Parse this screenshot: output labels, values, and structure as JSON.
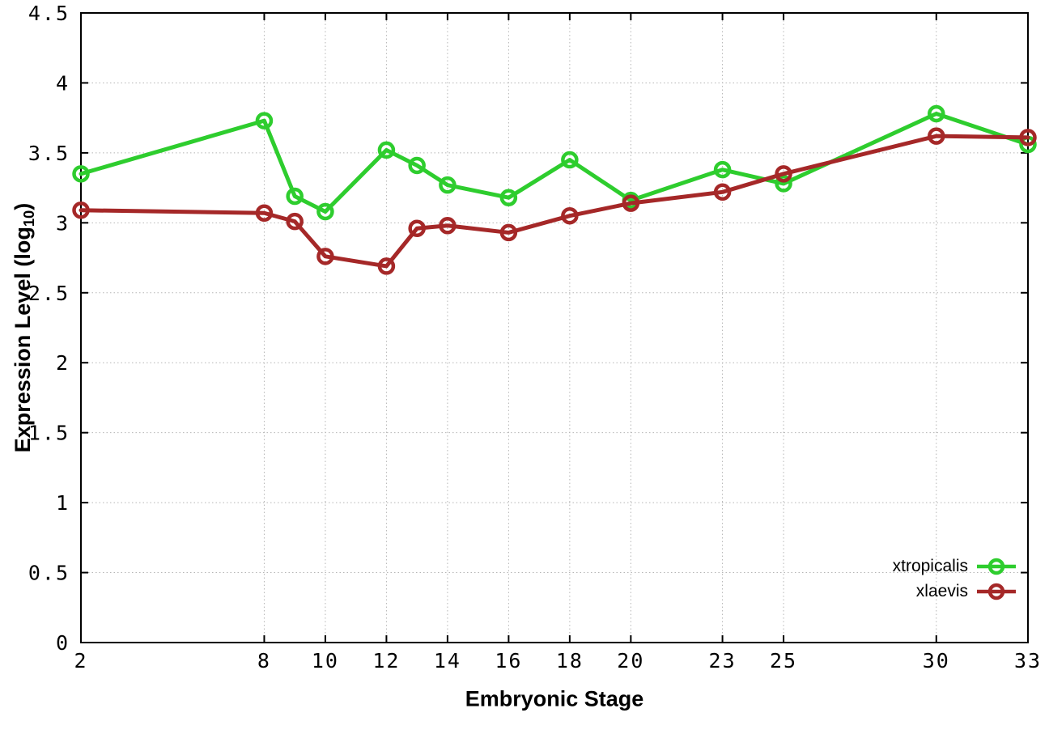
{
  "labels": {
    "xlabel": "Embryonic Stage",
    "ylabel_main": "Expression Level (log",
    "ylabel_sub": "10",
    "ylabel_close": ")"
  },
  "chart_data": {
    "type": "line",
    "title": "",
    "xlabel": "Embryonic Stage",
    "ylabel": "Expression Level (log10)",
    "x": [
      2,
      8,
      9,
      10,
      12,
      13,
      14,
      16,
      18,
      20,
      23,
      25,
      30,
      33
    ],
    "xlim": [
      2,
      33
    ],
    "ylim": [
      0,
      4.5
    ],
    "xticks": [
      2,
      8,
      10,
      12,
      14,
      16,
      18,
      20,
      23,
      25,
      30,
      33
    ],
    "xtick_labels": [
      "2",
      "8",
      "10",
      "12",
      "14",
      "16",
      "18",
      "20",
      "23",
      "25",
      "30",
      "33"
    ],
    "yticks": [
      0,
      0.5,
      1,
      1.5,
      2,
      2.5,
      3,
      3.5,
      4,
      4.5
    ],
    "ytick_labels": [
      "0",
      "0.5",
      "1",
      "1.5",
      "2",
      "2.5",
      "3",
      "3.5",
      "4",
      "4.5"
    ],
    "grid": true,
    "grid_style": "dotted",
    "legend_position": "bottom-right",
    "background": "#ffffff",
    "axis_color": "#000000",
    "grid_color": "#b5b5b5",
    "series": [
      {
        "name": "xtropicalis",
        "color": "#2ecd2e",
        "values": [
          3.35,
          3.73,
          3.19,
          3.08,
          3.52,
          3.41,
          3.27,
          3.18,
          3.45,
          3.16,
          3.38,
          3.28,
          3.78,
          3.56
        ]
      },
      {
        "name": "xlaevis",
        "color": "#a52828",
        "values": [
          3.09,
          3.07,
          3.01,
          2.76,
          2.69,
          2.96,
          2.98,
          2.93,
          3.05,
          3.14,
          3.22,
          3.35,
          3.62,
          3.61
        ]
      }
    ]
  }
}
